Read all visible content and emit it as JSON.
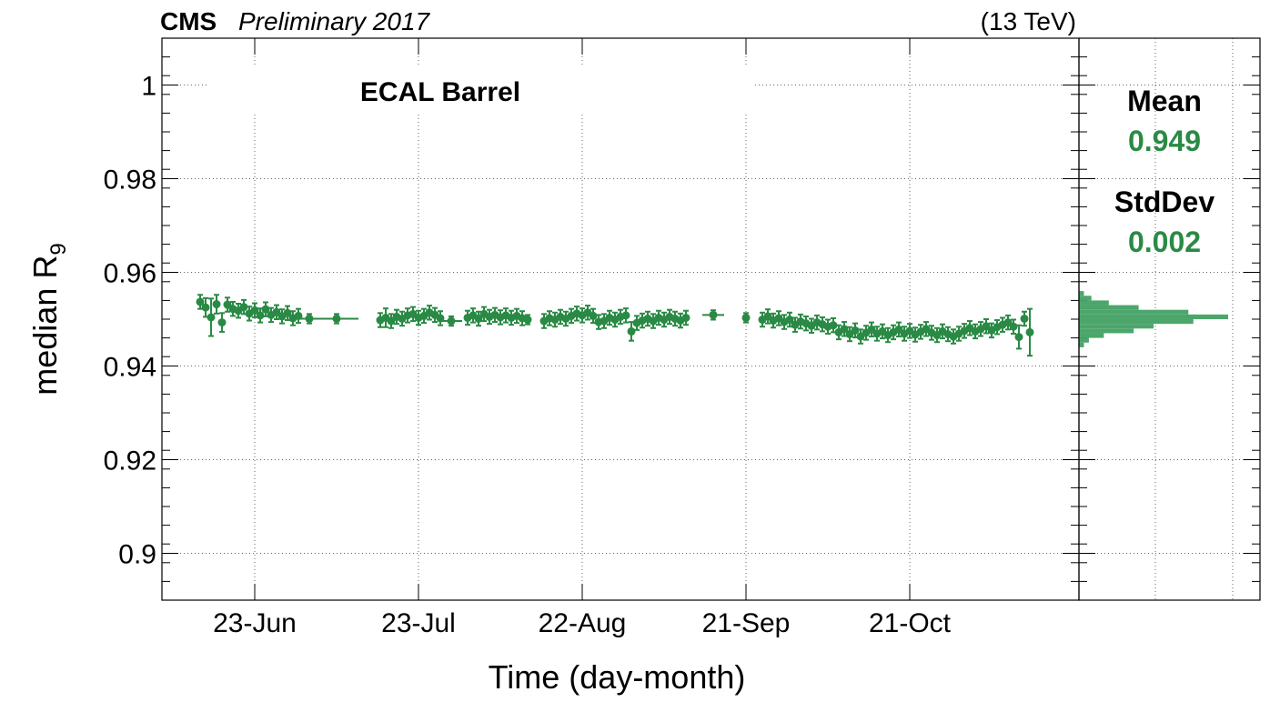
{
  "header": {
    "experiment": "CMS",
    "status": "Preliminary 2017",
    "energy": "(13 TeV)"
  },
  "panel_label": "ECAL Barrel",
  "stats": {
    "mean_label": "Mean",
    "mean_value": "0.949",
    "stddev_label": "StdDev",
    "stddev_value": "0.002"
  },
  "colors": {
    "series": "#2a8a45",
    "histogram": "#4ca66b",
    "frame": "#000000",
    "grid": "#666666"
  },
  "chart_data": {
    "type": "scatter",
    "title": "",
    "xlabel": "Time (day-month)",
    "ylabel": "median R",
    "ylabel_subscript": "9",
    "ylim": [
      0.89,
      1.01
    ],
    "yticks": [
      0.9,
      0.92,
      0.94,
      0.96,
      0.98,
      1
    ],
    "ytick_labels": [
      "0.9",
      "0.92",
      "0.94",
      "0.96",
      "0.98",
      "1"
    ],
    "xlim": [
      "2017-06-06",
      "2017-11-21"
    ],
    "xticks": [
      "2017-06-23",
      "2017-07-23",
      "2017-08-22",
      "2017-09-21",
      "2017-10-21"
    ],
    "xtick_labels": [
      "23-Jun",
      "23-Jul",
      "22-Aug",
      "21-Sep",
      "21-Oct"
    ],
    "grid": true,
    "series": [
      {
        "points": [
          {
            "x": "2017-06-13",
            "y": 0.9537,
            "yerr": 0.0015
          },
          {
            "x": "2017-06-14",
            "y": 0.9525,
            "yerr": 0.002
          },
          {
            "x": "2017-06-15",
            "y": 0.9504,
            "yerr": 0.004
          },
          {
            "x": "2017-06-16",
            "y": 0.9532,
            "yerr": 0.002
          },
          {
            "x": "2017-06-17",
            "y": 0.9493,
            "yerr": 0.002
          },
          {
            "x": "2017-06-18",
            "y": 0.9531,
            "yerr": 0.0015
          },
          {
            "x": "2017-06-19",
            "y": 0.9522,
            "yerr": 0.0015
          },
          {
            "x": "2017-06-20",
            "y": 0.9518,
            "yerr": 0.0015
          },
          {
            "x": "2017-06-21",
            "y": 0.9526,
            "yerr": 0.0015
          },
          {
            "x": "2017-06-22",
            "y": 0.9512,
            "yerr": 0.0015
          },
          {
            "x": "2017-06-23",
            "y": 0.9519,
            "yerr": 0.0015
          },
          {
            "x": "2017-06-24",
            "y": 0.9508,
            "yerr": 0.0015
          },
          {
            "x": "2017-06-25",
            "y": 0.9521,
            "yerr": 0.0015
          },
          {
            "x": "2017-06-26",
            "y": 0.9509,
            "yerr": 0.0015
          },
          {
            "x": "2017-06-27",
            "y": 0.9515,
            "yerr": 0.0015
          },
          {
            "x": "2017-06-28",
            "y": 0.9506,
            "yerr": 0.0015
          },
          {
            "x": "2017-06-29",
            "y": 0.9513,
            "yerr": 0.0015
          },
          {
            "x": "2017-06-30",
            "y": 0.9502,
            "yerr": 0.0015
          },
          {
            "x": "2017-07-01",
            "y": 0.9507,
            "yerr": 0.0015
          },
          {
            "x": "2017-07-03",
            "y": 0.9501,
            "yerr": 0.001,
            "xerr": 1
          },
          {
            "x": "2017-07-08",
            "y": 0.9501,
            "yerr": 0.001,
            "xerr": 3
          },
          {
            "x": "2017-07-16",
            "y": 0.9498,
            "yerr": 0.0015
          },
          {
            "x": "2017-07-17",
            "y": 0.9503,
            "yerr": 0.002
          },
          {
            "x": "2017-07-18",
            "y": 0.9496,
            "yerr": 0.0015
          },
          {
            "x": "2017-07-19",
            "y": 0.9505,
            "yerr": 0.0015
          },
          {
            "x": "2017-07-20",
            "y": 0.9501,
            "yerr": 0.0015
          },
          {
            "x": "2017-07-21",
            "y": 0.9508,
            "yerr": 0.0015
          },
          {
            "x": "2017-07-22",
            "y": 0.9511,
            "yerr": 0.0015
          },
          {
            "x": "2017-07-23",
            "y": 0.9503,
            "yerr": 0.0015
          },
          {
            "x": "2017-07-24",
            "y": 0.9507,
            "yerr": 0.0015
          },
          {
            "x": "2017-07-25",
            "y": 0.9514,
            "yerr": 0.0015
          },
          {
            "x": "2017-07-26",
            "y": 0.9509,
            "yerr": 0.0015
          },
          {
            "x": "2017-07-27",
            "y": 0.9502,
            "yerr": 0.0015
          },
          {
            "x": "2017-07-29",
            "y": 0.9496,
            "yerr": 0.001,
            "xerr": 1
          },
          {
            "x": "2017-08-01",
            "y": 0.9503,
            "yerr": 0.0015
          },
          {
            "x": "2017-08-02",
            "y": 0.9508,
            "yerr": 0.0015
          },
          {
            "x": "2017-08-03",
            "y": 0.9501,
            "yerr": 0.0015
          },
          {
            "x": "2017-08-04",
            "y": 0.9511,
            "yerr": 0.0015
          },
          {
            "x": "2017-08-05",
            "y": 0.9505,
            "yerr": 0.0015
          },
          {
            "x": "2017-08-06",
            "y": 0.9509,
            "yerr": 0.0015
          },
          {
            "x": "2017-08-07",
            "y": 0.9504,
            "yerr": 0.0015
          },
          {
            "x": "2017-08-08",
            "y": 0.9508,
            "yerr": 0.0015
          },
          {
            "x": "2017-08-09",
            "y": 0.9503,
            "yerr": 0.0015
          },
          {
            "x": "2017-08-10",
            "y": 0.9507,
            "yerr": 0.0015
          },
          {
            "x": "2017-08-11",
            "y": 0.9502,
            "yerr": 0.0015
          },
          {
            "x": "2017-08-12",
            "y": 0.9499,
            "yerr": 0.001
          },
          {
            "x": "2017-08-15",
            "y": 0.9496,
            "yerr": 0.0015
          },
          {
            "x": "2017-08-16",
            "y": 0.9502,
            "yerr": 0.0015
          },
          {
            "x": "2017-08-17",
            "y": 0.9499,
            "yerr": 0.0015
          },
          {
            "x": "2017-08-18",
            "y": 0.9505,
            "yerr": 0.0015
          },
          {
            "x": "2017-08-19",
            "y": 0.9501,
            "yerr": 0.0015
          },
          {
            "x": "2017-08-20",
            "y": 0.9507,
            "yerr": 0.0015
          },
          {
            "x": "2017-08-21",
            "y": 0.9512,
            "yerr": 0.0015
          },
          {
            "x": "2017-08-22",
            "y": 0.9508,
            "yerr": 0.0015
          },
          {
            "x": "2017-08-23",
            "y": 0.9514,
            "yerr": 0.0015
          },
          {
            "x": "2017-08-24",
            "y": 0.9507,
            "yerr": 0.0015
          },
          {
            "x": "2017-08-25",
            "y": 0.9494,
            "yerr": 0.0015
          },
          {
            "x": "2017-08-26",
            "y": 0.9496,
            "yerr": 0.0015
          },
          {
            "x": "2017-08-27",
            "y": 0.9503,
            "yerr": 0.0015
          },
          {
            "x": "2017-08-28",
            "y": 0.9499,
            "yerr": 0.0015
          },
          {
            "x": "2017-08-29",
            "y": 0.9505,
            "yerr": 0.0015
          },
          {
            "x": "2017-08-30",
            "y": 0.9508,
            "yerr": 0.0015
          },
          {
            "x": "2017-08-31",
            "y": 0.9474,
            "yerr": 0.002
          },
          {
            "x": "2017-09-01",
            "y": 0.9492,
            "yerr": 0.0015
          },
          {
            "x": "2017-09-02",
            "y": 0.9497,
            "yerr": 0.0015
          },
          {
            "x": "2017-09-03",
            "y": 0.9501,
            "yerr": 0.0015
          },
          {
            "x": "2017-09-04",
            "y": 0.9496,
            "yerr": 0.0015
          },
          {
            "x": "2017-09-05",
            "y": 0.9503,
            "yerr": 0.0015
          },
          {
            "x": "2017-09-06",
            "y": 0.9499,
            "yerr": 0.0015
          },
          {
            "x": "2017-09-07",
            "y": 0.9505,
            "yerr": 0.0015
          },
          {
            "x": "2017-09-08",
            "y": 0.9501,
            "yerr": 0.0015
          },
          {
            "x": "2017-09-09",
            "y": 0.9497,
            "yerr": 0.0015
          },
          {
            "x": "2017-09-10",
            "y": 0.9503,
            "yerr": 0.0015
          },
          {
            "x": "2017-09-15",
            "y": 0.9509,
            "yerr": 0.001,
            "xerr": 1
          },
          {
            "x": "2017-09-21",
            "y": 0.9503,
            "yerr": 0.001
          },
          {
            "x": "2017-09-24",
            "y": 0.9499,
            "yerr": 0.0015
          },
          {
            "x": "2017-09-25",
            "y": 0.9506,
            "yerr": 0.0015
          },
          {
            "x": "2017-09-26",
            "y": 0.9497,
            "yerr": 0.0015
          },
          {
            "x": "2017-09-27",
            "y": 0.9502,
            "yerr": 0.0015
          },
          {
            "x": "2017-09-28",
            "y": 0.9494,
            "yerr": 0.0015
          },
          {
            "x": "2017-09-29",
            "y": 0.9499,
            "yerr": 0.0015
          },
          {
            "x": "2017-09-30",
            "y": 0.9488,
            "yerr": 0.0015
          },
          {
            "x": "2017-10-01",
            "y": 0.9495,
            "yerr": 0.0015
          },
          {
            "x": "2017-10-02",
            "y": 0.9491,
            "yerr": 0.0015
          },
          {
            "x": "2017-10-03",
            "y": 0.9486,
            "yerr": 0.0015
          },
          {
            "x": "2017-10-04",
            "y": 0.9493,
            "yerr": 0.0015
          },
          {
            "x": "2017-10-05",
            "y": 0.9489,
            "yerr": 0.0015
          },
          {
            "x": "2017-10-06",
            "y": 0.9484,
            "yerr": 0.0015
          },
          {
            "x": "2017-10-07",
            "y": 0.9487,
            "yerr": 0.0015
          },
          {
            "x": "2017-10-08",
            "y": 0.9472,
            "yerr": 0.0015
          },
          {
            "x": "2017-10-09",
            "y": 0.9479,
            "yerr": 0.0015
          },
          {
            "x": "2017-10-10",
            "y": 0.9468,
            "yerr": 0.0015
          },
          {
            "x": "2017-10-11",
            "y": 0.9476,
            "yerr": 0.0015
          },
          {
            "x": "2017-10-12",
            "y": 0.9463,
            "yerr": 0.0015
          },
          {
            "x": "2017-10-13",
            "y": 0.9471,
            "yerr": 0.0015
          },
          {
            "x": "2017-10-14",
            "y": 0.9478,
            "yerr": 0.0015
          },
          {
            "x": "2017-10-15",
            "y": 0.9469,
            "yerr": 0.0015
          },
          {
            "x": "2017-10-16",
            "y": 0.9474,
            "yerr": 0.0015
          },
          {
            "x": "2017-10-17",
            "y": 0.9466,
            "yerr": 0.0015
          },
          {
            "x": "2017-10-18",
            "y": 0.9472,
            "yerr": 0.0015
          },
          {
            "x": "2017-10-19",
            "y": 0.9478,
            "yerr": 0.0015
          },
          {
            "x": "2017-10-20",
            "y": 0.9469,
            "yerr": 0.0015
          },
          {
            "x": "2017-10-21",
            "y": 0.9475,
            "yerr": 0.0015
          },
          {
            "x": "2017-10-22",
            "y": 0.9467,
            "yerr": 0.0015
          },
          {
            "x": "2017-10-23",
            "y": 0.9473,
            "yerr": 0.0015
          },
          {
            "x": "2017-10-24",
            "y": 0.9479,
            "yerr": 0.0015
          },
          {
            "x": "2017-10-25",
            "y": 0.9471,
            "yerr": 0.0015
          },
          {
            "x": "2017-10-26",
            "y": 0.9466,
            "yerr": 0.0015
          },
          {
            "x": "2017-10-27",
            "y": 0.9474,
            "yerr": 0.0015
          },
          {
            "x": "2017-10-28",
            "y": 0.9468,
            "yerr": 0.0015
          },
          {
            "x": "2017-10-29",
            "y": 0.9463,
            "yerr": 0.0015
          },
          {
            "x": "2017-10-30",
            "y": 0.9469,
            "yerr": 0.0015
          },
          {
            "x": "2017-10-31",
            "y": 0.9475,
            "yerr": 0.0015
          },
          {
            "x": "2017-11-01",
            "y": 0.9481,
            "yerr": 0.0015
          },
          {
            "x": "2017-11-02",
            "y": 0.9474,
            "yerr": 0.0015
          },
          {
            "x": "2017-11-03",
            "y": 0.9479,
            "yerr": 0.0015
          },
          {
            "x": "2017-11-04",
            "y": 0.9485,
            "yerr": 0.0015
          },
          {
            "x": "2017-11-05",
            "y": 0.9476,
            "yerr": 0.0015
          },
          {
            "x": "2017-11-06",
            "y": 0.9483,
            "yerr": 0.0015
          },
          {
            "x": "2017-11-07",
            "y": 0.9488,
            "yerr": 0.0015
          },
          {
            "x": "2017-11-08",
            "y": 0.9493,
            "yerr": 0.0015
          },
          {
            "x": "2017-11-09",
            "y": 0.9484,
            "yerr": 0.0015
          },
          {
            "x": "2017-11-10",
            "y": 0.9462,
            "yerr": 0.0025
          },
          {
            "x": "2017-11-11",
            "y": 0.9501,
            "yerr": 0.0015
          },
          {
            "x": "2017-11-12",
            "y": 0.9472,
            "yerr": 0.005
          }
        ]
      }
    ],
    "histogram": {
      "orientation": "horizontal",
      "ylim": [
        0.89,
        1.01
      ],
      "bins": [
        {
          "y": 0.9445,
          "count": 2
        },
        {
          "y": 0.9455,
          "count": 4
        },
        {
          "y": 0.9465,
          "count": 10
        },
        {
          "y": 0.9475,
          "count": 22
        },
        {
          "y": 0.9485,
          "count": 30
        },
        {
          "y": 0.9495,
          "count": 46
        },
        {
          "y": 0.9505,
          "count": 60
        },
        {
          "y": 0.9515,
          "count": 44
        },
        {
          "y": 0.9525,
          "count": 24
        },
        {
          "y": 0.9535,
          "count": 12
        },
        {
          "y": 0.9545,
          "count": 5
        },
        {
          "y": 0.9555,
          "count": 2
        }
      ]
    }
  }
}
